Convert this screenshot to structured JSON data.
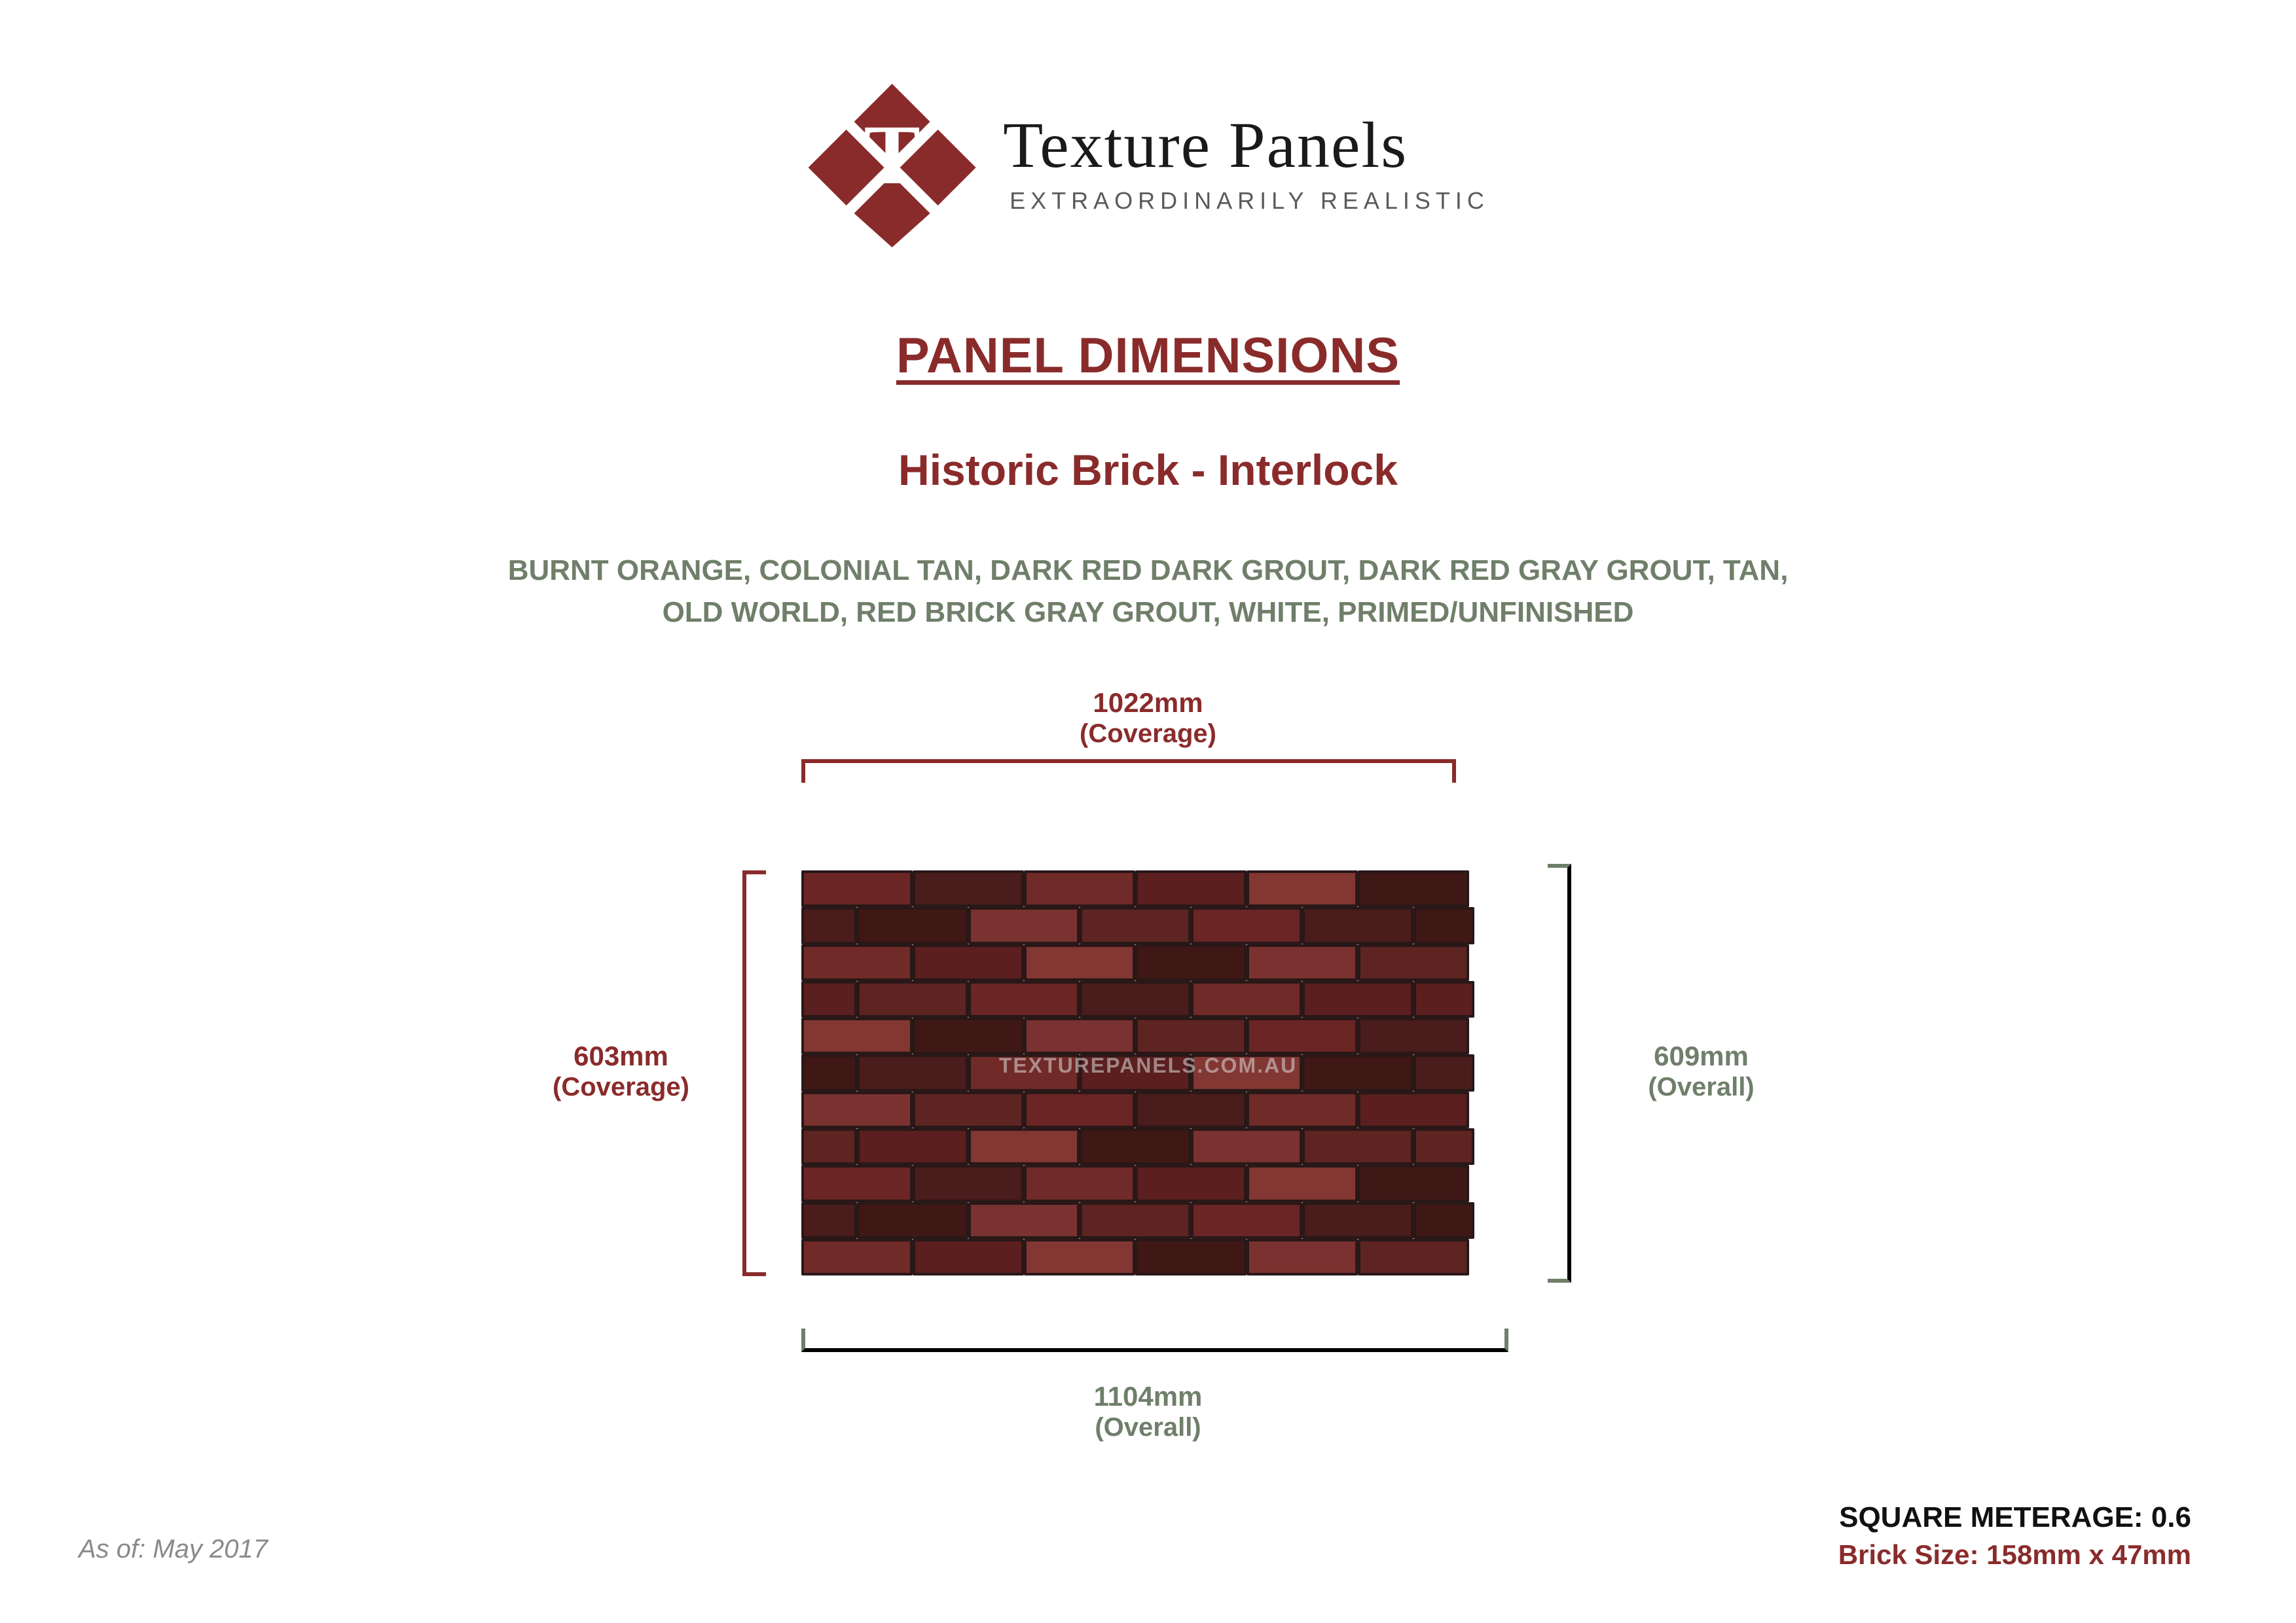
{
  "brand": {
    "name": "Texture Panels",
    "tagline": "EXTRAORDINARILY REALISTIC",
    "logo_color": "#8a2b2b",
    "logo_letter": "T"
  },
  "section_title": "PANEL DIMENSIONS",
  "product_name": "Historic Brick - Interlock",
  "color_options_line1": "BURNT ORANGE, COLONIAL TAN, DARK RED DARK GROUT, DARK RED GRAY GROUT, TAN,",
  "color_options_line2": "OLD WORLD, RED BRICK GRAY GROUT, WHITE, PRIMED/UNFINISHED",
  "dimensions": {
    "width_coverage": {
      "value": "1022mm",
      "note": "(Coverage)",
      "color": "#8a2b2b"
    },
    "width_overall": {
      "value": "1104mm",
      "note": "(Overall)",
      "color": "#6f7f6a"
    },
    "height_coverage": {
      "value": "603mm",
      "note": "(Coverage)",
      "color": "#8a2b2b"
    },
    "height_overall": {
      "value": "609mm",
      "note": "(Overall)",
      "color": "#6f7f6a"
    }
  },
  "watermark": "TEXTUREPANELS.COM.AU",
  "as_of": "As of: May 2017",
  "footer": {
    "square_meterage_label": "SQUARE METERAGE:",
    "square_meterage_value": "0.6",
    "brick_size_label": "Brick Size:",
    "brick_size_value": "158mm x 47mm"
  },
  "style": {
    "accent_red": "#8a2b2b",
    "accent_green": "#6f7f6a",
    "brick_palette": [
      "#6a2524",
      "#5a1f1e",
      "#7a3230",
      "#4a1c1b",
      "#823733",
      "#5e2422",
      "#702a28",
      "#3f1816"
    ],
    "grout_color": "#2a1818",
    "rows": 11,
    "bricks_per_row_full": 6
  }
}
